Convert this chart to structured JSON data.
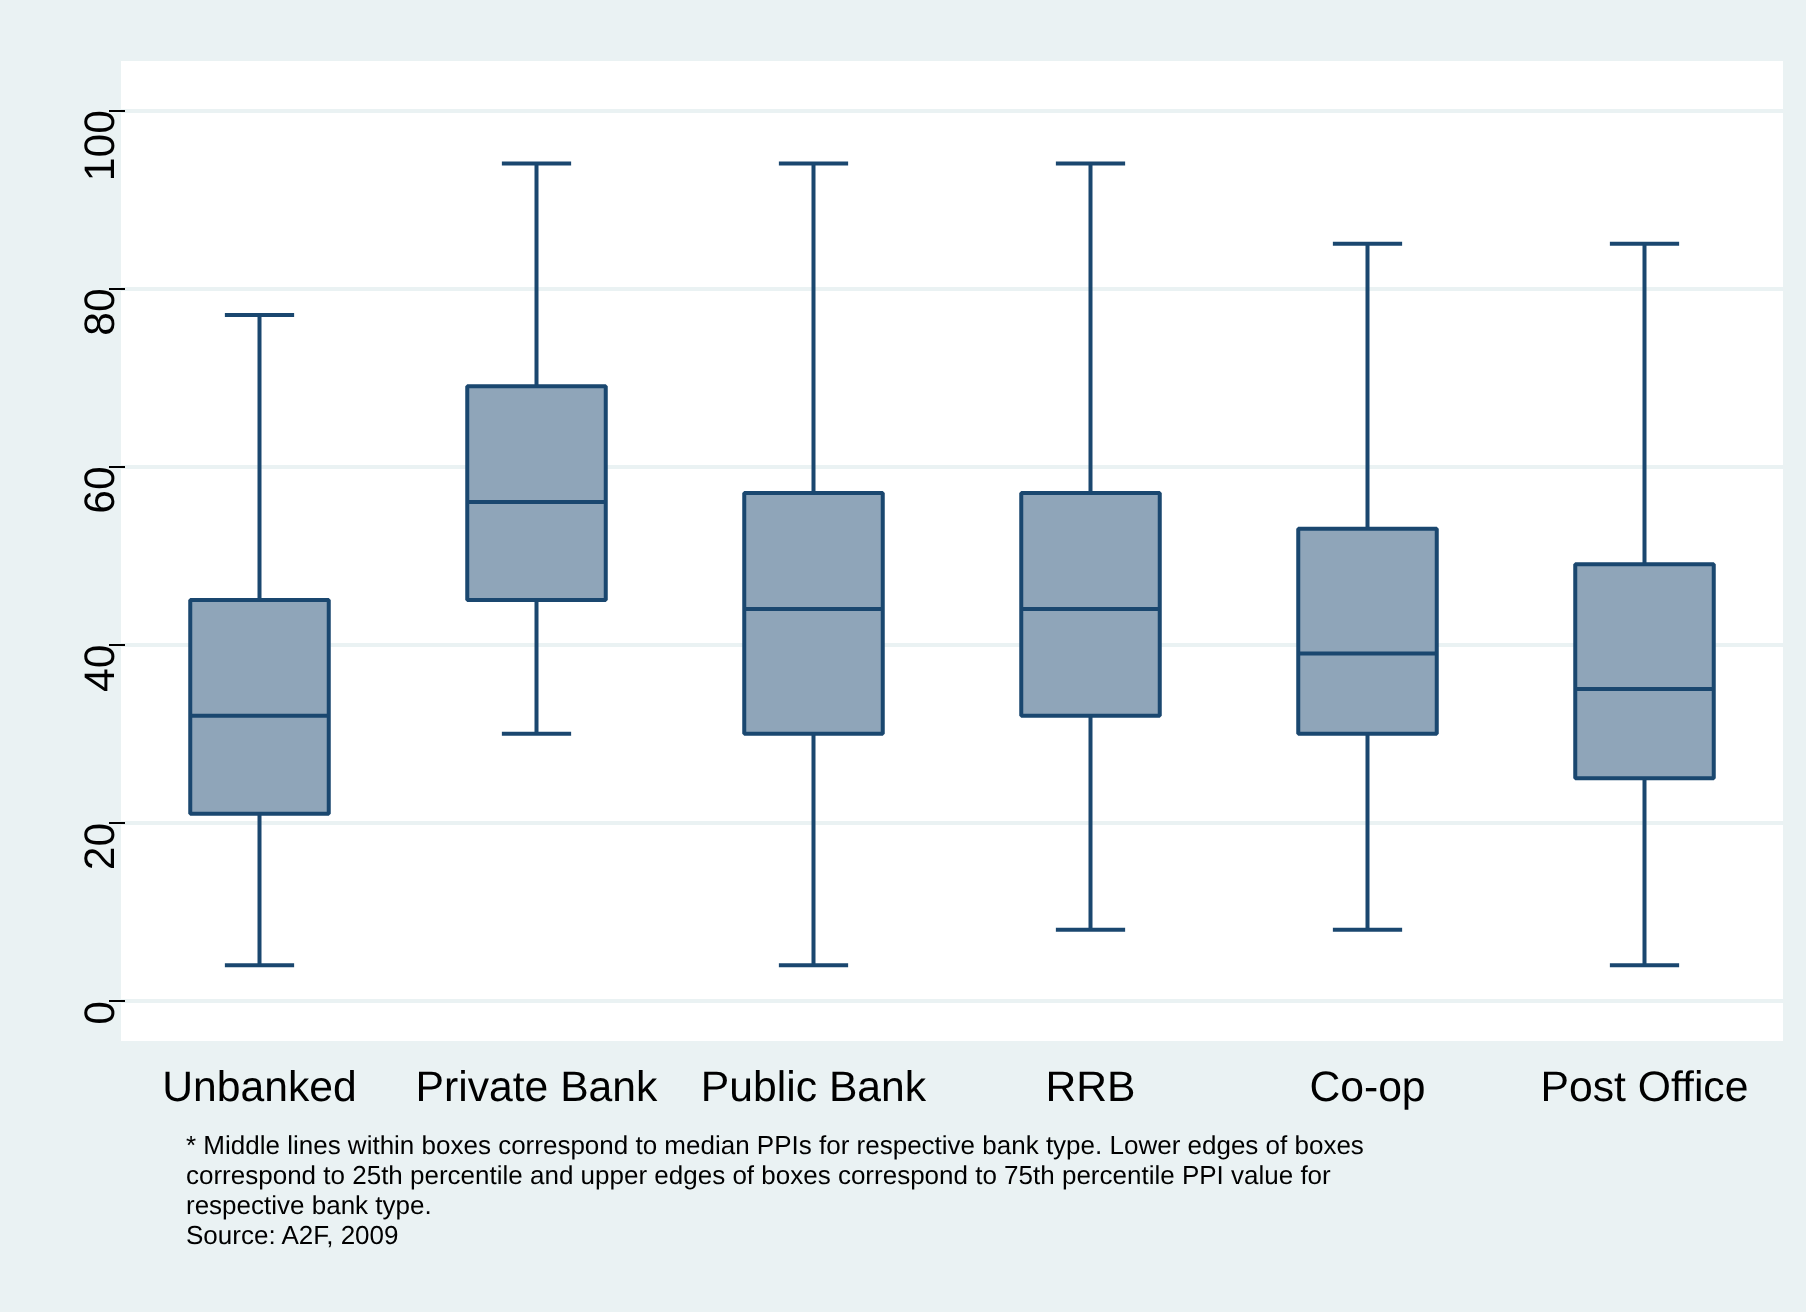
{
  "chart_data": {
    "type": "box",
    "categories": [
      "Unbanked",
      "Private Bank",
      "Public Bank",
      "RRB",
      "Co-op",
      "Post Office"
    ],
    "boxes": [
      {
        "low": 4,
        "q1": 21,
        "median": 32,
        "q3": 45,
        "high": 77
      },
      {
        "low": 30,
        "q1": 45,
        "median": 56,
        "q3": 69,
        "high": 94
      },
      {
        "low": 4,
        "q1": 30,
        "median": 44,
        "q3": 57,
        "high": 94
      },
      {
        "low": 8,
        "q1": 32,
        "median": 44,
        "q3": 57,
        "high": 94
      },
      {
        "low": 8,
        "q1": 30,
        "median": 39,
        "q3": 53,
        "high": 85
      },
      {
        "low": 4,
        "q1": 25,
        "median": 35,
        "q3": 49,
        "high": 85
      }
    ],
    "color": "#8fa5b9",
    "ylim": [
      -4.5,
      105.5
    ],
    "yticks": [
      0,
      20,
      40,
      60,
      80,
      100
    ],
    "grid": "y",
    "annotations": [
      "* Middle lines within boxes correspond to median PPIs for respective bank type. Lower edges of boxes correspond to 25th percentile and upper edges of boxes correspond to 75th percentile PPI value for respective bank type.",
      "Source: A2F, 2009"
    ]
  }
}
